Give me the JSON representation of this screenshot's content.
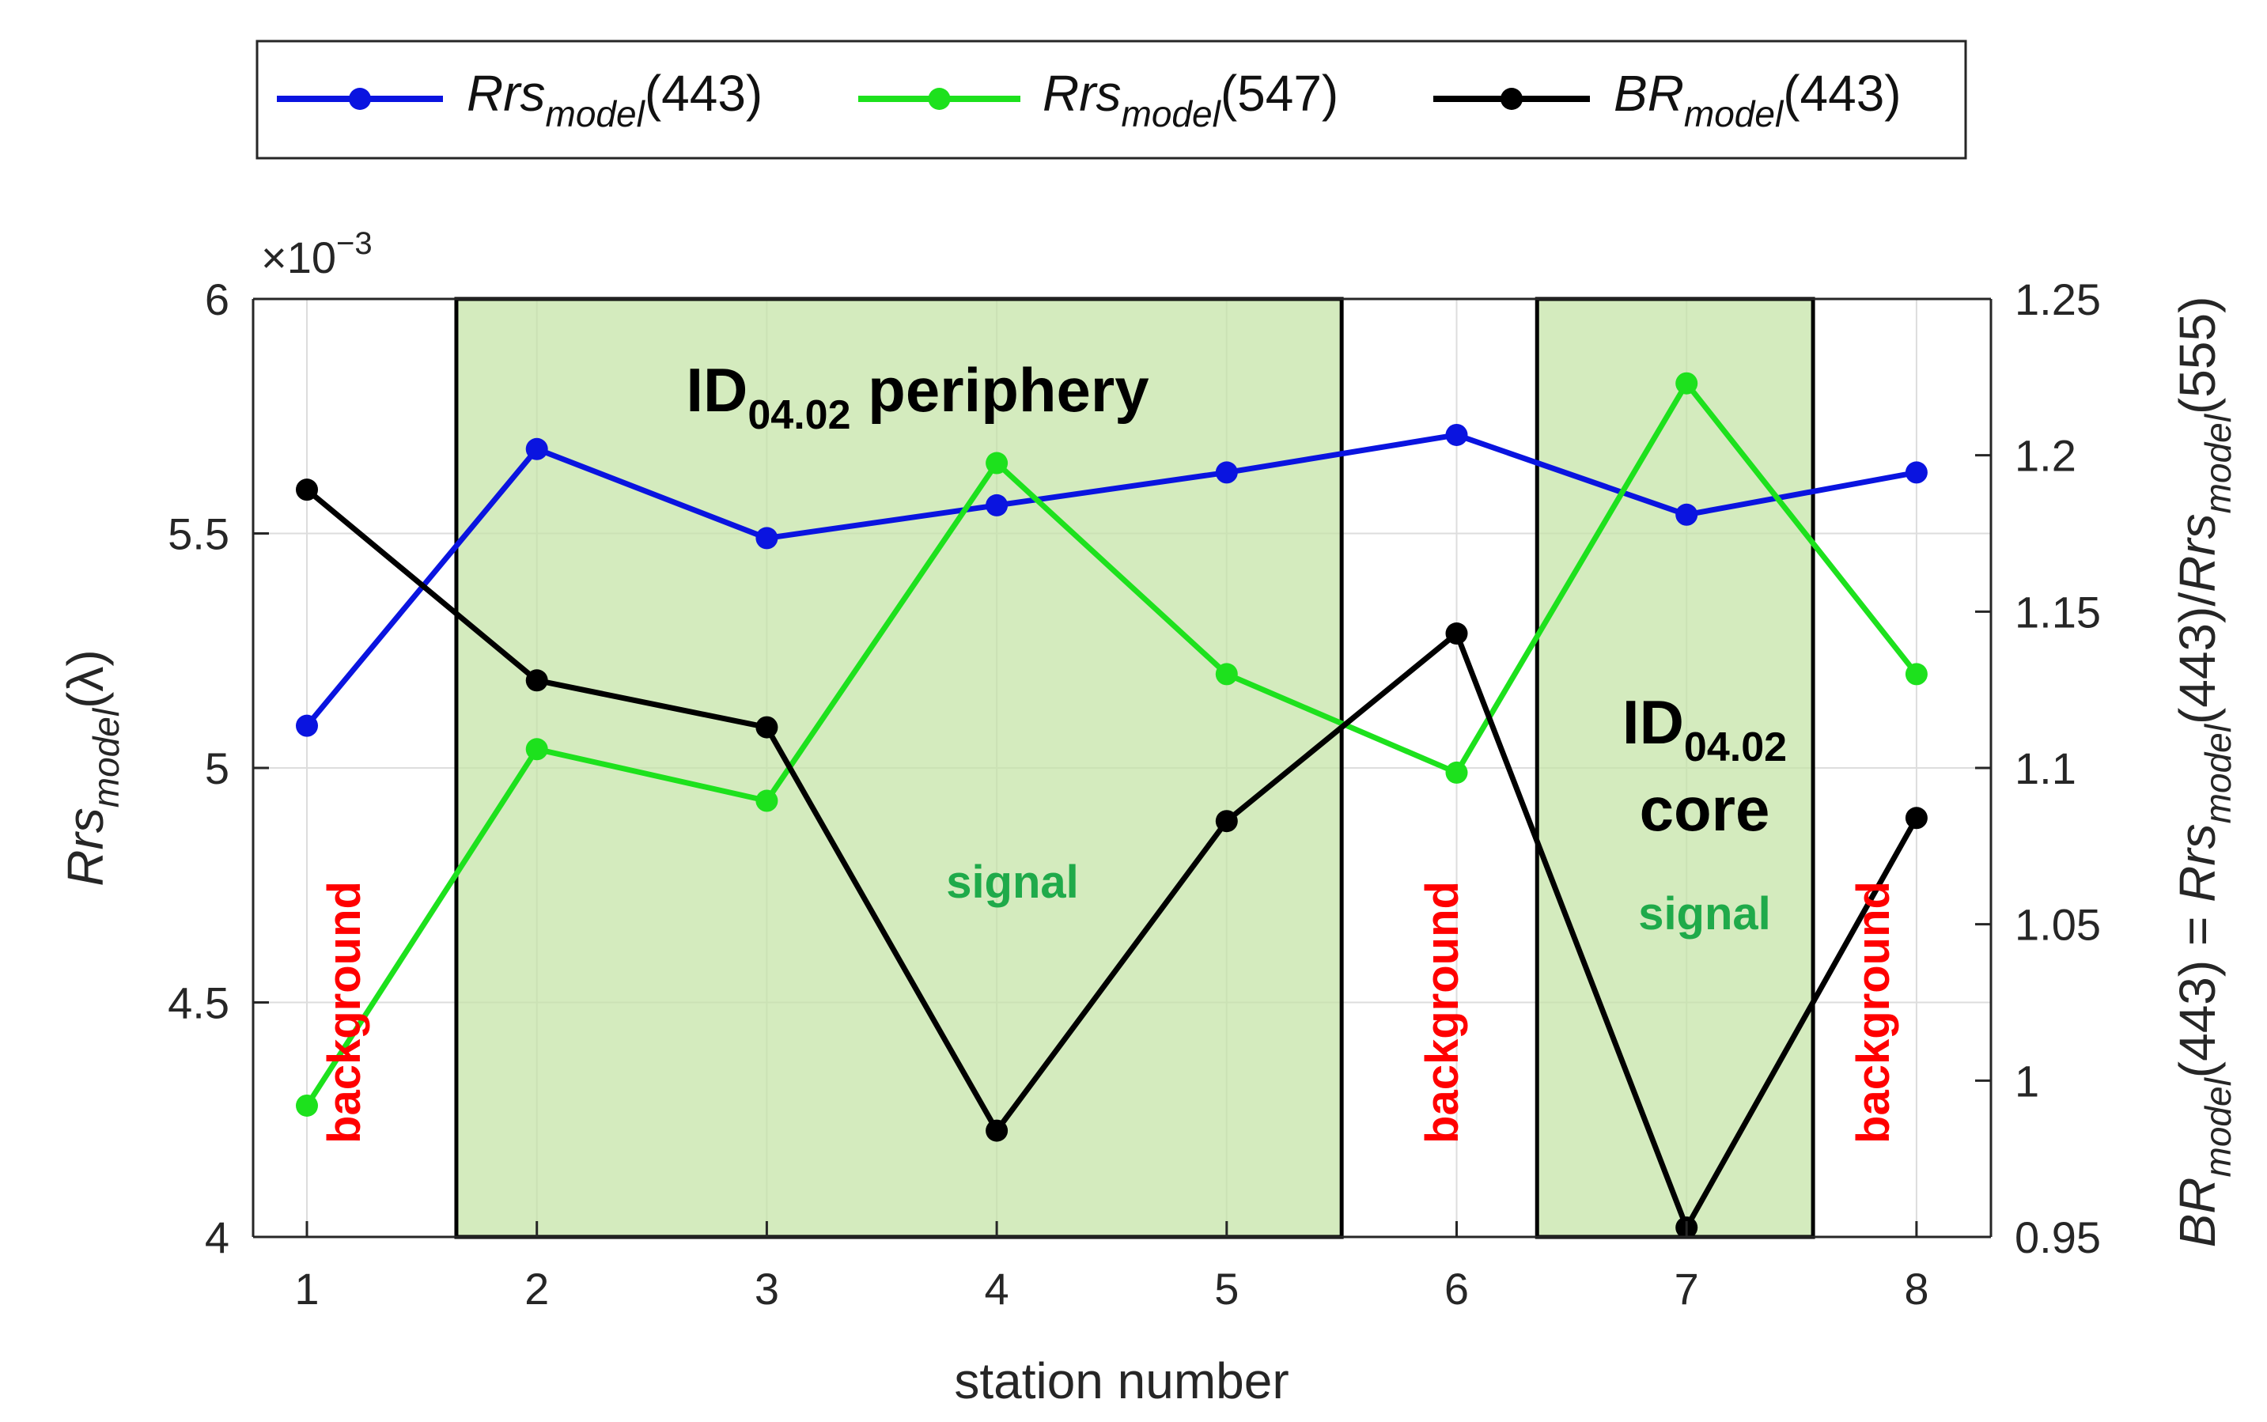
{
  "chart_data": {
    "type": "line",
    "xlabel": "station number",
    "x": [
      1,
      2,
      3,
      4,
      5,
      6,
      7,
      8
    ],
    "xticks": [
      "1",
      "2",
      "3",
      "4",
      "5",
      "6",
      "7",
      "8"
    ],
    "xlim": [
      0.6,
      8.2
    ],
    "left_axis": {
      "label_main": "Rrs",
      "label_sub": "model",
      "label_tail": "(λ)",
      "multiplier": "×10",
      "multiplier_exp": "−3",
      "ylim": [
        4.0,
        6.0
      ],
      "ticks": [
        "4",
        "4.5",
        "5",
        "5.5",
        "6"
      ],
      "tick_values": [
        4.0,
        4.5,
        5.0,
        5.5,
        6.0
      ]
    },
    "right_axis": {
      "label_parts": [
        "BR",
        "model",
        "(443) = ",
        "Rrs",
        "model",
        "(443)/",
        "Rrs",
        "model",
        "(555)"
      ],
      "ylim": [
        0.95,
        1.25
      ],
      "ticks": [
        "0.95",
        "1",
        "1.05",
        "1.1",
        "1.15",
        "1.2",
        "1.25"
      ],
      "tick_values": [
        0.95,
        1.0,
        1.05,
        1.1,
        1.15,
        1.2,
        1.25
      ]
    },
    "series": [
      {
        "name": "Rrs_model(443)",
        "label_main": "Rrs",
        "label_sub": "model",
        "label_tail": "(443)",
        "axis": "left",
        "color": "#0a14e0",
        "values": [
          5.09,
          5.68,
          5.49,
          5.56,
          5.63,
          5.71,
          5.54,
          5.63
        ]
      },
      {
        "name": "Rrs_model(547)",
        "label_main": "Rrs",
        "label_sub": "model",
        "label_tail": "(547)",
        "axis": "left",
        "color": "#1de11d",
        "values": [
          4.28,
          5.04,
          4.93,
          5.65,
          5.2,
          4.99,
          5.82,
          5.2
        ]
      },
      {
        "name": "BR_model(443)",
        "label_main": "BR",
        "label_sub": "model",
        "label_tail": "(443)",
        "axis": "right",
        "color": "#000000",
        "values": [
          1.189,
          1.128,
          1.113,
          0.984,
          1.083,
          1.143,
          0.953,
          1.084
        ]
      }
    ],
    "regions": [
      {
        "name": "periphery",
        "x0": 1.65,
        "x1": 5.5,
        "title": "ID",
        "title_sub": "04.02",
        "title_tail": " periphery",
        "label": "signal"
      },
      {
        "name": "core",
        "x0": 6.35,
        "x1": 7.55,
        "title": "ID",
        "title_sub": "04.02",
        "title_line2": "core",
        "label": "signal"
      }
    ],
    "background_labels": [
      "background",
      "background",
      "background"
    ],
    "colors": {
      "region_fill": "#c3e3a5",
      "signal_text": "#1faa4a",
      "background_text": "#ff0000",
      "axis": "#262626",
      "grid": "#dddddd"
    }
  }
}
